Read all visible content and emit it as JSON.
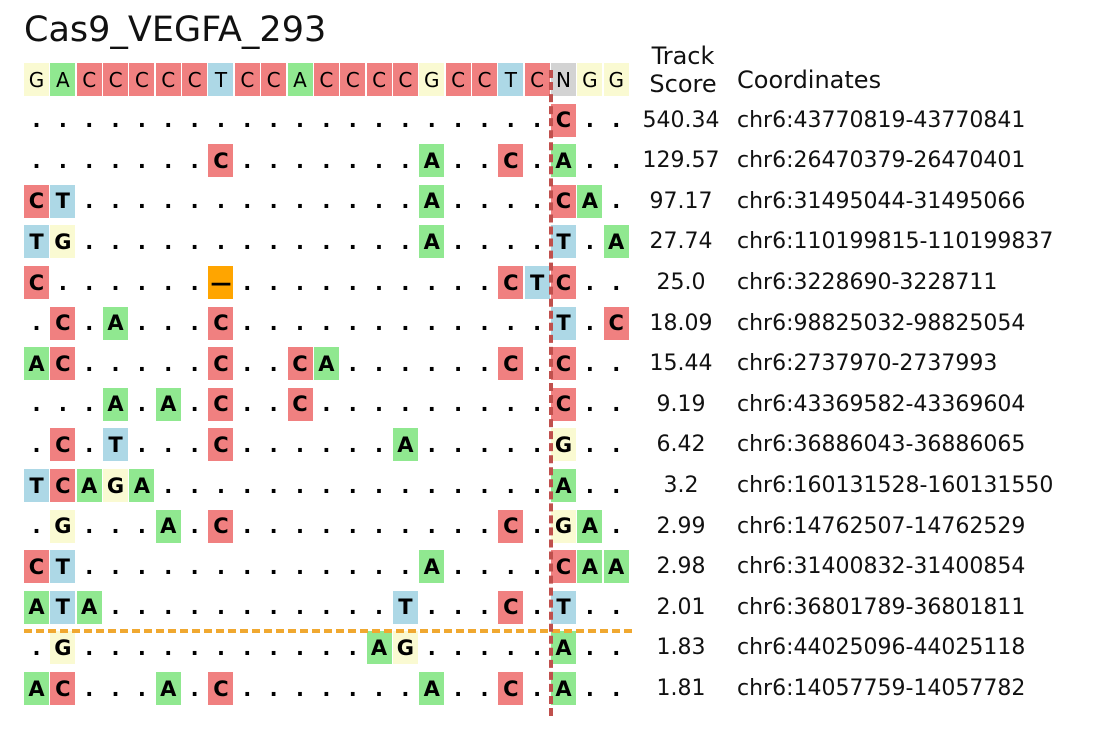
{
  "title": "Cas9_VEGFA_293",
  "header": {
    "track_score": "Track\nScore",
    "coordinates": "Coordinates"
  },
  "colors": {
    "A": "#90e890",
    "C": "#f08080",
    "G": "#fafad2",
    "T": "#add8e6",
    "N": "#d3d3d3",
    "gap": "#ffa500",
    "cut_line": "#c0504d",
    "threshold_line": "#f0a830"
  },
  "reference": [
    "G",
    "A",
    "C",
    "C",
    "C",
    "C",
    "C",
    "T",
    "C",
    "C",
    "A",
    "C",
    "C",
    "C",
    "C",
    "G",
    "C",
    "C",
    "T",
    "C",
    "N",
    "G",
    "G"
  ],
  "rows": [
    {
      "seq": [
        ".",
        ".",
        ".",
        ".",
        ".",
        ".",
        ".",
        ".",
        ".",
        ".",
        ".",
        ".",
        ".",
        ".",
        ".",
        ".",
        ".",
        ".",
        ".",
        ".",
        "C",
        ".",
        "."
      ],
      "score": "540.34",
      "coord": "chr6:43770819-43770841"
    },
    {
      "seq": [
        ".",
        ".",
        ".",
        ".",
        ".",
        ".",
        ".",
        "C",
        ".",
        ".",
        ".",
        ".",
        ".",
        ".",
        ".",
        "A",
        ".",
        ".",
        "C",
        ".",
        "A",
        ".",
        "."
      ],
      "score": "129.57",
      "coord": "chr6:26470379-26470401"
    },
    {
      "seq": [
        "C",
        "T",
        ".",
        ".",
        ".",
        ".",
        ".",
        ".",
        ".",
        ".",
        ".",
        ".",
        ".",
        ".",
        ".",
        "A",
        ".",
        ".",
        ".",
        ".",
        "C",
        "A",
        "."
      ],
      "score": "97.17",
      "coord": "chr6:31495044-31495066"
    },
    {
      "seq": [
        "T",
        "G",
        ".",
        ".",
        ".",
        ".",
        ".",
        ".",
        ".",
        ".",
        ".",
        ".",
        ".",
        ".",
        ".",
        "A",
        ".",
        ".",
        ".",
        ".",
        "T",
        ".",
        "A"
      ],
      "score": "27.74",
      "coord": "chr6:110199815-110199837"
    },
    {
      "seq": [
        "C",
        ".",
        ".",
        ".",
        ".",
        ".",
        ".",
        "—",
        ".",
        ".",
        ".",
        ".",
        ".",
        ".",
        ".",
        ".",
        ".",
        ".",
        "C",
        "T",
        "C",
        ".",
        "."
      ],
      "score": "25.0",
      "coord": "chr6:3228690-3228711"
    },
    {
      "seq": [
        ".",
        "C",
        ".",
        "A",
        ".",
        ".",
        ".",
        "C",
        ".",
        ".",
        ".",
        ".",
        ".",
        ".",
        ".",
        ".",
        ".",
        ".",
        ".",
        ".",
        "T",
        ".",
        "C"
      ],
      "score": "18.09",
      "coord": "chr6:98825032-98825054"
    },
    {
      "seq": [
        "A",
        "C",
        ".",
        ".",
        ".",
        ".",
        ".",
        "C",
        ".",
        ".",
        "C",
        "A",
        ".",
        ".",
        ".",
        ".",
        ".",
        ".",
        "C",
        ".",
        "C",
        ".",
        "."
      ],
      "score": "15.44",
      "coord": "chr6:2737970-2737993"
    },
    {
      "seq": [
        ".",
        ".",
        ".",
        "A",
        ".",
        "A",
        ".",
        "C",
        ".",
        ".",
        "C",
        ".",
        ".",
        ".",
        ".",
        ".",
        ".",
        ".",
        ".",
        ".",
        "C",
        ".",
        "."
      ],
      "score": "9.19",
      "coord": "chr6:43369582-43369604"
    },
    {
      "seq": [
        ".",
        "C",
        ".",
        "T",
        ".",
        ".",
        ".",
        "C",
        ".",
        ".",
        ".",
        ".",
        ".",
        ".",
        "A",
        ".",
        ".",
        ".",
        ".",
        ".",
        "G",
        ".",
        "."
      ],
      "score": "6.42",
      "coord": "chr6:36886043-36886065"
    },
    {
      "seq": [
        "T",
        "C",
        "A",
        "G",
        "A",
        ".",
        ".",
        ".",
        ".",
        ".",
        ".",
        ".",
        ".",
        ".",
        ".",
        ".",
        ".",
        ".",
        ".",
        ".",
        "A",
        ".",
        "."
      ],
      "score": "3.2",
      "coord": "chr6:160131528-160131550"
    },
    {
      "seq": [
        ".",
        "G",
        ".",
        ".",
        ".",
        "A",
        ".",
        "C",
        ".",
        ".",
        ".",
        ".",
        ".",
        ".",
        ".",
        ".",
        ".",
        ".",
        "C",
        ".",
        "G",
        "A",
        "."
      ],
      "score": "2.99",
      "coord": "chr6:14762507-14762529"
    },
    {
      "seq": [
        "C",
        "T",
        ".",
        ".",
        ".",
        ".",
        ".",
        ".",
        ".",
        ".",
        ".",
        ".",
        ".",
        ".",
        ".",
        "A",
        ".",
        ".",
        ".",
        ".",
        "C",
        "A",
        "A"
      ],
      "score": "2.98",
      "coord": "chr6:31400832-31400854"
    },
    {
      "seq": [
        "A",
        "T",
        "A",
        ".",
        ".",
        ".",
        ".",
        ".",
        ".",
        ".",
        ".",
        ".",
        ".",
        ".",
        "T",
        ".",
        ".",
        ".",
        "C",
        ".",
        "T",
        ".",
        "."
      ],
      "score": "2.01",
      "coord": "chr6:36801789-36801811"
    },
    {
      "seq": [
        ".",
        "G",
        ".",
        ".",
        ".",
        ".",
        ".",
        ".",
        ".",
        ".",
        ".",
        ".",
        ".",
        "A",
        "G",
        ".",
        ".",
        ".",
        ".",
        ".",
        "A",
        ".",
        "."
      ],
      "score": "1.83",
      "coord": "chr6:44025096-44025118"
    },
    {
      "seq": [
        "A",
        "C",
        ".",
        ".",
        ".",
        "A",
        ".",
        "C",
        ".",
        ".",
        ".",
        ".",
        ".",
        ".",
        ".",
        "A",
        ".",
        ".",
        "C",
        ".",
        "A",
        ".",
        "."
      ],
      "score": "1.81",
      "coord": "chr6:14057759-14057782"
    }
  ]
}
